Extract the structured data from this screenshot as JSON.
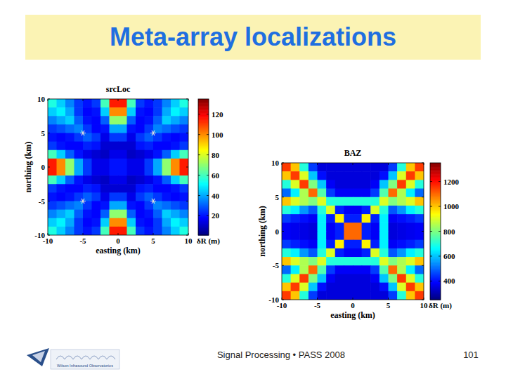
{
  "slide": {
    "title": "Meta-array localizations",
    "footer": "Signal Processing • PASS 2008",
    "page": 101,
    "logo_text": "Wilson Infrasound Observatories"
  },
  "chart_data": [
    {
      "type": "heatmap",
      "title": "srcLoc",
      "x_label": "easting (km)",
      "y_label": "northing (km)",
      "xlim": [
        -10,
        10
      ],
      "ylim": [
        -10,
        10
      ],
      "xticks": [
        -10,
        -5,
        0,
        5,
        10
      ],
      "yticks": [
        -10,
        -5,
        0,
        5,
        10
      ],
      "x": [
        -9.375,
        -8.125,
        -6.875,
        -5.625,
        -4.375,
        -3.125,
        -1.875,
        -0.625,
        0.625,
        1.875,
        3.125,
        4.375,
        5.625,
        6.875,
        8.125,
        9.375
      ],
      "y": [
        9.375,
        8.125,
        6.875,
        5.625,
        4.375,
        3.125,
        1.875,
        0.625,
        -0.625,
        -1.875,
        -3.125,
        -4.375,
        -5.625,
        -6.875,
        -8.125,
        -9.375
      ],
      "z": [
        [
          55,
          45,
          35,
          25,
          20,
          25,
          60,
          115,
          115,
          60,
          25,
          20,
          25,
          35,
          45,
          55
        ],
        [
          45,
          50,
          40,
          25,
          18,
          20,
          45,
          100,
          100,
          45,
          20,
          18,
          25,
          40,
          50,
          45
        ],
        [
          35,
          40,
          45,
          30,
          20,
          18,
          30,
          70,
          70,
          30,
          18,
          20,
          30,
          45,
          40,
          35
        ],
        [
          25,
          28,
          32,
          35,
          25,
          18,
          20,
          40,
          40,
          20,
          18,
          25,
          35,
          32,
          28,
          25
        ],
        [
          20,
          18,
          20,
          25,
          30,
          25,
          15,
          25,
          25,
          15,
          25,
          30,
          25,
          20,
          18,
          20
        ],
        [
          25,
          20,
          18,
          18,
          22,
          20,
          12,
          12,
          12,
          12,
          20,
          22,
          18,
          18,
          20,
          25
        ],
        [
          60,
          45,
          30,
          20,
          15,
          12,
          10,
          15,
          15,
          10,
          12,
          15,
          20,
          30,
          45,
          60
        ],
        [
          115,
          100,
          70,
          40,
          25,
          15,
          15,
          20,
          20,
          15,
          15,
          25,
          40,
          70,
          100,
          115
        ],
        [
          115,
          100,
          70,
          40,
          25,
          15,
          15,
          20,
          20,
          15,
          15,
          25,
          40,
          70,
          100,
          115
        ],
        [
          60,
          45,
          30,
          20,
          15,
          12,
          10,
          15,
          15,
          10,
          12,
          15,
          20,
          30,
          45,
          60
        ],
        [
          25,
          20,
          18,
          18,
          22,
          20,
          12,
          12,
          12,
          12,
          20,
          22,
          18,
          18,
          20,
          25
        ],
        [
          20,
          18,
          20,
          25,
          30,
          25,
          15,
          25,
          25,
          15,
          25,
          30,
          25,
          20,
          18,
          20
        ],
        [
          25,
          28,
          32,
          35,
          25,
          18,
          20,
          40,
          40,
          20,
          18,
          25,
          35,
          32,
          28,
          25
        ],
        [
          35,
          40,
          45,
          30,
          20,
          18,
          30,
          70,
          70,
          30,
          18,
          20,
          30,
          45,
          40,
          35
        ],
        [
          45,
          50,
          40,
          25,
          18,
          20,
          45,
          100,
          100,
          45,
          20,
          18,
          25,
          40,
          50,
          45
        ],
        [
          55,
          45,
          35,
          25,
          20,
          25,
          60,
          115,
          115,
          60,
          25,
          20,
          25,
          35,
          45,
          55
        ]
      ],
      "stations": {
        "x": [
          -5,
          5,
          -5,
          5
        ],
        "y": [
          5,
          5,
          -5,
          -5
        ]
      },
      "colorbar": {
        "label": "δR (m)",
        "range": [
          1,
          135
        ],
        "ticks": [
          20,
          40,
          60,
          80,
          100,
          120
        ]
      }
    },
    {
      "type": "heatmap",
      "title": "BAZ",
      "x_label": "easting (km)",
      "y_label": "northing (km)",
      "xlim": [
        -10,
        10
      ],
      "ylim": [
        -10,
        10
      ],
      "xticks": [
        -10,
        -5,
        0,
        5,
        10
      ],
      "yticks": [
        -10,
        -5,
        0,
        5,
        10
      ],
      "x": [
        -9.375,
        -8.125,
        -6.875,
        -5.625,
        -4.375,
        -3.125,
        -1.875,
        -0.625,
        0.625,
        1.875,
        3.125,
        4.375,
        5.625,
        6.875,
        8.125,
        9.375
      ],
      "y": [
        9.375,
        8.125,
        6.875,
        5.625,
        4.375,
        3.125,
        1.875,
        0.625,
        -0.625,
        -1.875,
        -3.125,
        -4.375,
        -5.625,
        -6.875,
        -8.125,
        -9.375
      ],
      "z": [
        [
          1150,
          1000,
          700,
          450,
          350,
          350,
          350,
          350,
          350,
          350,
          350,
          350,
          450,
          700,
          1000,
          1150
        ],
        [
          1000,
          1150,
          900,
          600,
          400,
          350,
          350,
          350,
          350,
          350,
          350,
          400,
          600,
          900,
          1150,
          1000
        ],
        [
          700,
          900,
          1150,
          800,
          600,
          380,
          350,
          350,
          350,
          350,
          380,
          600,
          800,
          1150,
          900,
          700
        ],
        [
          500,
          650,
          850,
          1100,
          750,
          450,
          380,
          380,
          380,
          380,
          450,
          750,
          1100,
          850,
          650,
          500
        ],
        [
          1000,
          900,
          850,
          800,
          900,
          700,
          700,
          700,
          700,
          700,
          700,
          900,
          800,
          850,
          900,
          1000
        ],
        [
          700,
          650,
          550,
          480,
          700,
          900,
          420,
          380,
          380,
          420,
          900,
          700,
          480,
          550,
          650,
          700
        ],
        [
          450,
          420,
          400,
          380,
          650,
          420,
          950,
          420,
          420,
          950,
          420,
          650,
          380,
          400,
          420,
          450
        ],
        [
          380,
          370,
          360,
          350,
          650,
          380,
          420,
          1100,
          1100,
          420,
          380,
          650,
          350,
          360,
          370,
          380
        ],
        [
          380,
          370,
          360,
          350,
          650,
          380,
          420,
          1100,
          1100,
          420,
          380,
          650,
          350,
          360,
          370,
          380
        ],
        [
          450,
          420,
          400,
          380,
          650,
          420,
          950,
          420,
          420,
          950,
          420,
          650,
          380,
          400,
          420,
          450
        ],
        [
          700,
          650,
          550,
          480,
          700,
          900,
          420,
          380,
          380,
          420,
          900,
          700,
          480,
          550,
          650,
          700
        ],
        [
          1000,
          900,
          850,
          800,
          900,
          700,
          700,
          700,
          700,
          700,
          700,
          900,
          800,
          850,
          900,
          1000
        ],
        [
          500,
          650,
          850,
          1100,
          750,
          450,
          380,
          380,
          380,
          380,
          450,
          750,
          1100,
          850,
          650,
          500
        ],
        [
          700,
          900,
          1150,
          800,
          600,
          380,
          350,
          350,
          350,
          350,
          380,
          600,
          800,
          1150,
          900,
          700
        ],
        [
          1000,
          1150,
          900,
          600,
          400,
          350,
          350,
          350,
          350,
          350,
          350,
          400,
          600,
          900,
          1150,
          1000
        ],
        [
          1150,
          1000,
          700,
          450,
          350,
          350,
          350,
          350,
          350,
          350,
          350,
          350,
          450,
          700,
          1000,
          1150
        ]
      ],
      "colorbar": {
        "label": "δR (m)",
        "range": [
          250,
          1350
        ],
        "ticks": [
          400,
          600,
          800,
          1000,
          1200
        ]
      }
    }
  ]
}
